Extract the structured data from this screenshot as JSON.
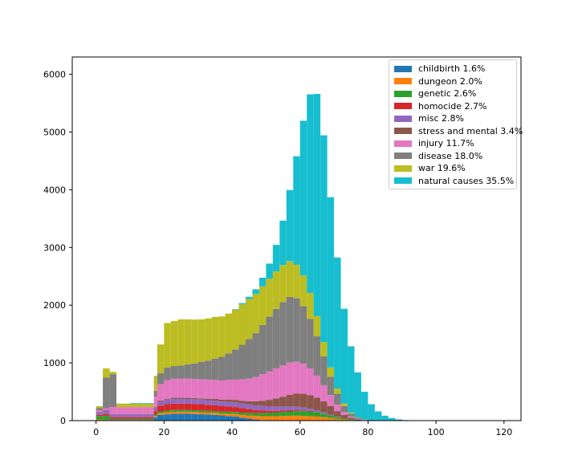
{
  "chart_data": {
    "type": "area",
    "subtype": "stacked-histogram",
    "title": "",
    "xlabel": "",
    "ylabel": "",
    "xlim": [
      -7,
      125
    ],
    "ylim": [
      0,
      6300
    ],
    "xticks": [
      0,
      20,
      40,
      60,
      80,
      100,
      120
    ],
    "yticks": [
      0,
      1000,
      2000,
      3000,
      4000,
      5000,
      6000
    ],
    "grid": false,
    "legend_position": "top-right",
    "x": [
      0,
      2,
      4,
      6,
      8,
      10,
      12,
      14,
      16,
      17,
      18,
      20,
      22,
      24,
      26,
      28,
      30,
      32,
      34,
      36,
      38,
      40,
      42,
      44,
      46,
      48,
      50,
      52,
      54,
      56,
      58,
      60,
      62,
      64,
      66,
      68,
      70,
      72,
      74,
      76,
      78,
      80,
      82,
      84,
      86,
      88,
      90,
      92,
      94,
      96,
      98,
      100,
      120
    ],
    "series": [
      {
        "name": "childbirth 1.6%",
        "color": "#1f77b4",
        "values": [
          0,
          0,
          0,
          0,
          0,
          0,
          0,
          0,
          0,
          60,
          100,
          110,
          120,
          120,
          120,
          115,
          110,
          105,
          100,
          90,
          80,
          70,
          50,
          35,
          20,
          10,
          5,
          0,
          0,
          0,
          0,
          0,
          0,
          0,
          0,
          0,
          0,
          0,
          0,
          0,
          0,
          0,
          0,
          0,
          0,
          0,
          0,
          0,
          0,
          0,
          0,
          0,
          0
        ]
      },
      {
        "name": "dungeon 2.0%",
        "color": "#ff7f0e",
        "values": [
          20,
          15,
          10,
          10,
          10,
          10,
          10,
          10,
          10,
          20,
          30,
          35,
          35,
          35,
          35,
          35,
          35,
          35,
          35,
          35,
          40,
          45,
          50,
          55,
          60,
          65,
          70,
          75,
          80,
          85,
          85,
          80,
          75,
          70,
          60,
          45,
          30,
          20,
          10,
          5,
          2,
          0,
          0,
          0,
          0,
          0,
          0,
          0,
          0,
          0,
          0,
          0,
          0
        ]
      },
      {
        "name": "genetic 2.6%",
        "color": "#2ca02c",
        "values": [
          60,
          70,
          20,
          20,
          20,
          20,
          20,
          20,
          20,
          25,
          30,
          30,
          30,
          30,
          30,
          30,
          30,
          30,
          30,
          30,
          35,
          35,
          40,
          45,
          50,
          55,
          60,
          65,
          70,
          75,
          80,
          85,
          85,
          75,
          60,
          45,
          30,
          15,
          8,
          3,
          1,
          0,
          0,
          0,
          0,
          0,
          0,
          0,
          0,
          0,
          0,
          0,
          0
        ]
      },
      {
        "name": "homocide 2.7%",
        "color": "#d62728",
        "values": [
          20,
          30,
          30,
          30,
          30,
          30,
          30,
          30,
          30,
          60,
          100,
          110,
          110,
          110,
          110,
          110,
          110,
          105,
          100,
          95,
          90,
          85,
          75,
          65,
          55,
          45,
          35,
          30,
          25,
          20,
          15,
          10,
          8,
          5,
          3,
          1,
          0,
          0,
          0,
          0,
          0,
          0,
          0,
          0,
          0,
          0,
          0,
          0,
          0,
          0,
          0,
          0,
          0
        ]
      },
      {
        "name": "misc 2.8%",
        "color": "#9467bd",
        "values": [
          40,
          60,
          50,
          50,
          50,
          50,
          50,
          50,
          50,
          60,
          75,
          80,
          80,
          80,
          80,
          80,
          80,
          80,
          80,
          80,
          80,
          80,
          80,
          80,
          80,
          80,
          80,
          75,
          70,
          65,
          60,
          50,
          40,
          30,
          20,
          10,
          5,
          2,
          0,
          0,
          0,
          0,
          0,
          0,
          0,
          0,
          0,
          0,
          0,
          0,
          0,
          0,
          0
        ]
      },
      {
        "name": "stress and mental 3.4%",
        "color": "#8c564b",
        "values": [
          10,
          10,
          5,
          5,
          5,
          5,
          5,
          5,
          5,
          10,
          15,
          15,
          20,
          20,
          20,
          20,
          20,
          25,
          30,
          35,
          40,
          45,
          50,
          55,
          70,
          90,
          110,
          140,
          170,
          200,
          230,
          240,
          235,
          220,
          190,
          150,
          100,
          60,
          30,
          12,
          4,
          1,
          0,
          0,
          0,
          0,
          0,
          0,
          0,
          0,
          0,
          0,
          0
        ]
      },
      {
        "name": "injury 11.7%",
        "color": "#e377c2",
        "values": [
          30,
          30,
          120,
          120,
          120,
          120,
          120,
          120,
          120,
          180,
          280,
          320,
          330,
          330,
          330,
          330,
          330,
          330,
          330,
          330,
          340,
          350,
          370,
          390,
          420,
          460,
          490,
          520,
          540,
          560,
          550,
          520,
          460,
          380,
          280,
          190,
          110,
          55,
          25,
          10,
          4,
          1,
          0,
          0,
          0,
          0,
          0,
          0,
          0,
          0,
          0,
          0,
          0
        ]
      },
      {
        "name": "disease 18.0%",
        "color": "#7f7f7f",
        "values": [
          40,
          530,
          570,
          0,
          0,
          0,
          0,
          0,
          0,
          100,
          190,
          220,
          220,
          230,
          250,
          270,
          300,
          330,
          370,
          410,
          460,
          520,
          600,
          690,
          760,
          850,
          950,
          1030,
          1100,
          1140,
          1100,
          1000,
          860,
          680,
          500,
          320,
          190,
          100,
          45,
          18,
          6,
          2,
          0,
          0,
          0,
          0,
          0,
          0,
          0,
          0,
          0,
          0,
          0
        ]
      },
      {
        "name": "war 19.6%",
        "color": "#bcbd22",
        "values": [
          30,
          160,
          40,
          60,
          60,
          60,
          60,
          60,
          60,
          260,
          500,
          770,
          780,
          800,
          780,
          760,
          740,
          730,
          720,
          700,
          690,
          690,
          700,
          690,
          680,
          670,
          660,
          650,
          640,
          620,
          580,
          530,
          450,
          350,
          250,
          160,
          90,
          45,
          20,
          8,
          3,
          1,
          0,
          0,
          0,
          0,
          0,
          0,
          0,
          0,
          0,
          0,
          0
        ]
      },
      {
        "name": "natural causes 35.5%",
        "color": "#17becf",
        "values": [
          0,
          0,
          0,
          0,
          0,
          10,
          10,
          10,
          10,
          0,
          0,
          0,
          0,
          0,
          0,
          0,
          0,
          0,
          0,
          0,
          0,
          10,
          20,
          40,
          80,
          150,
          260,
          460,
          770,
          1230,
          1880,
          2680,
          3440,
          3850,
          3580,
          2950,
          2270,
          1640,
          1150,
          780,
          480,
          280,
          160,
          85,
          45,
          22,
          10,
          4,
          2,
          1,
          0,
          0,
          0
        ]
      }
    ]
  }
}
